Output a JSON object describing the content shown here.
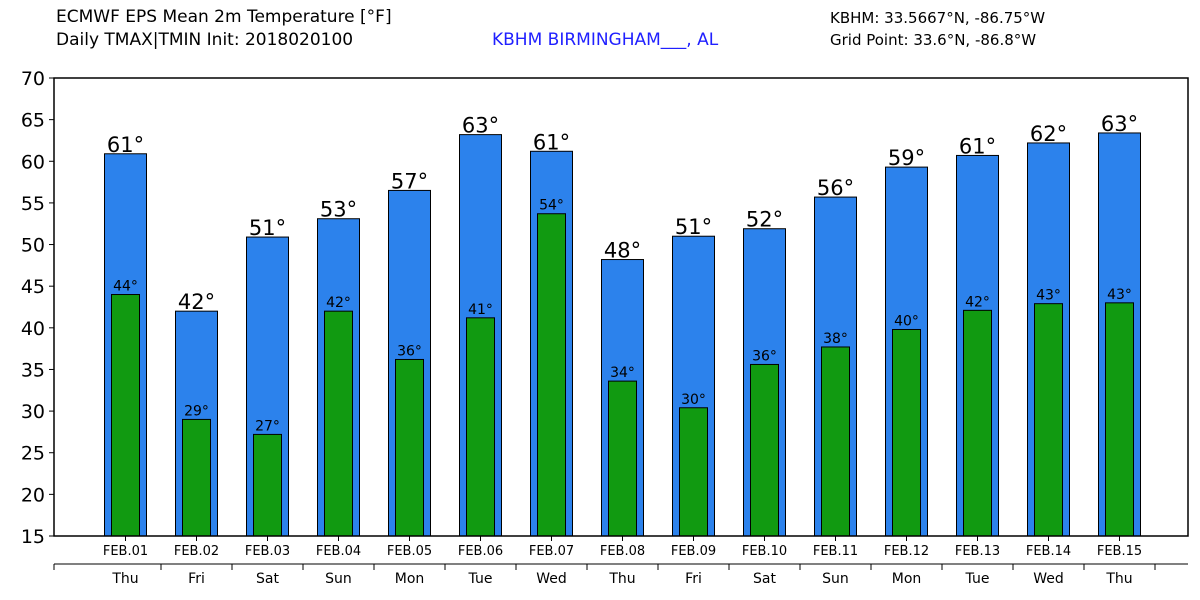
{
  "header": {
    "title": "ECMWF EPS Mean 2m Temperature [°F]",
    "subtitle": "Daily TMAX|TMIN Init: 2018020100",
    "station": "KBHM BIRMINGHAM___, AL",
    "station_color": "#2020ff",
    "coords": "KBHM: 33.5667°N, -86.75°W",
    "grid_point": "Grid Point: 33.6°N, -86.8°W"
  },
  "chart_data": {
    "type": "bar",
    "title": "ECMWF EPS Mean 2m Temperature [°F]",
    "categories": [
      "FEB.01",
      "FEB.02",
      "FEB.03",
      "FEB.04",
      "FEB.05",
      "FEB.06",
      "FEB.07",
      "FEB.08",
      "FEB.09",
      "FEB.10",
      "FEB.11",
      "FEB.12",
      "FEB.13",
      "FEB.14",
      "FEB.15"
    ],
    "days": [
      "Thu",
      "Fri",
      "Sat",
      "Sun",
      "Mon",
      "Tue",
      "Wed",
      "Thu",
      "Fri",
      "Sat",
      "Sun",
      "Mon",
      "Tue",
      "Wed",
      "Thu"
    ],
    "series": [
      {
        "values": [
          60.9,
          42.0,
          50.9,
          53.1,
          56.5,
          63.2,
          61.2,
          48.2,
          51.0,
          51.9,
          55.7,
          59.3,
          60.7,
          62.2,
          63.4
        ],
        "labels": [
          "61°",
          "42°",
          "51°",
          "53°",
          "57°",
          "63°",
          "61°",
          "48°",
          "51°",
          "52°",
          "56°",
          "59°",
          "61°",
          "62°",
          "63°"
        ],
        "color": "#2c82ec"
      },
      {
        "values": [
          44.0,
          29.0,
          27.2,
          42.0,
          36.2,
          41.2,
          53.7,
          33.6,
          30.4,
          35.6,
          37.7,
          39.8,
          42.1,
          42.9,
          43.0
        ],
        "labels": [
          "44°",
          "29°",
          "27°",
          "42°",
          "36°",
          "41°",
          "54°",
          "34°",
          "30°",
          "36°",
          "38°",
          "40°",
          "42°",
          "43°",
          "43°"
        ],
        "color": "#119a11"
      }
    ],
    "ylim": [
      15,
      70
    ],
    "yticks": [
      15,
      20,
      25,
      30,
      35,
      40,
      45,
      50,
      55,
      60,
      65,
      70
    ],
    "grid": false
  }
}
